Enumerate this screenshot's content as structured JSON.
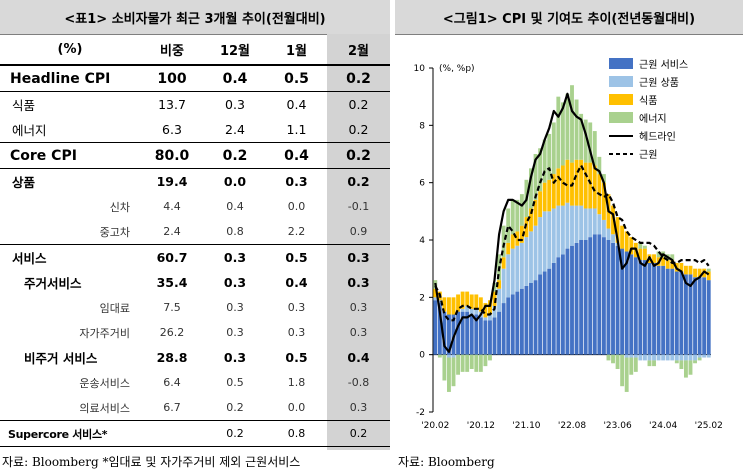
{
  "table": {
    "title": "<표1> 소비자물가 최근 3개월 추이(전월대비)",
    "headers": [
      "(%)",
      "비중",
      "12월",
      "1월",
      "2월"
    ],
    "rows": [
      {
        "label": "Headline CPI",
        "weight": "100",
        "dec": "0.4",
        "jan": "0.5",
        "feb": "0.2"
      },
      {
        "label": "식품",
        "weight": "13.7",
        "dec": "0.3",
        "jan": "0.4",
        "feb": "0.2"
      },
      {
        "label": "에너지",
        "weight": "6.3",
        "dec": "2.4",
        "jan": "1.1",
        "feb": "0.2"
      },
      {
        "label": "Core CPI",
        "weight": "80.0",
        "dec": "0.2",
        "jan": "0.4",
        "feb": "0.2"
      },
      {
        "label": "상품",
        "weight": "19.4",
        "dec": "0.0",
        "jan": "0.3",
        "feb": "0.2"
      },
      {
        "label": "신차",
        "weight": "4.4",
        "dec": "0.4",
        "jan": "0.0",
        "feb": "-0.1"
      },
      {
        "label": "중고차",
        "weight": "2.4",
        "dec": "0.8",
        "jan": "2.2",
        "feb": "0.9"
      },
      {
        "label": "서비스",
        "weight": "60.7",
        "dec": "0.3",
        "jan": "0.5",
        "feb": "0.3"
      },
      {
        "label": "주거서비스",
        "weight": "35.4",
        "dec": "0.3",
        "jan": "0.4",
        "feb": "0.3"
      },
      {
        "label": "임대료",
        "weight": "7.5",
        "dec": "0.3",
        "jan": "0.3",
        "feb": "0.3"
      },
      {
        "label": "자가주거비",
        "weight": "26.2",
        "dec": "0.3",
        "jan": "0.3",
        "feb": "0.3"
      },
      {
        "label": "비주거 서비스",
        "weight": "28.8",
        "dec": "0.3",
        "jan": "0.5",
        "feb": "0.4"
      },
      {
        "label": "운송서비스",
        "weight": "6.4",
        "dec": "0.5",
        "jan": "1.8",
        "feb": "-0.8"
      },
      {
        "label": "의료서비스",
        "weight": "6.7",
        "dec": "0.2",
        "jan": "0.0",
        "feb": "0.3"
      },
      {
        "label": "Supercore 서비스*",
        "weight": "",
        "dec": "0.2",
        "jan": "0.8",
        "feb": "0.2"
      }
    ],
    "source": "자료: Bloomberg *임대료 및 자가주거비 제외 근원서비스"
  },
  "chart": {
    "title": "<그림1> CPI 및 기여도 추이(전년동월대비)",
    "source": "자료: Bloomberg"
  },
  "chart_data": {
    "type": "bar",
    "title": "<그림1> CPI 및 기여도 추이(전년동월대비)",
    "unit_label": "(%, %p)",
    "ylim": [
      -2,
      10
    ],
    "yticks": [
      -2,
      0,
      2,
      4,
      6,
      8,
      10
    ],
    "x_tick_labels": [
      "'20.02",
      "'20.12",
      "'21.10",
      "'22.08",
      "'23.06",
      "'24.04",
      "'25.02"
    ],
    "x_tick_index": [
      0,
      10,
      20,
      30,
      40,
      50,
      60
    ],
    "months": 61,
    "legend_position": "top-right",
    "colors": {
      "core_services": "#4472c4",
      "core_goods": "#9dc3e6",
      "food": "#ffc000",
      "energy": "#a9d18e",
      "headline": "#000000",
      "core": "#000000"
    },
    "series": [
      {
        "name": "근원 서비스",
        "kind": "stacked-bar",
        "values": [
          1.9,
          1.8,
          1.5,
          1.4,
          1.4,
          1.5,
          1.5,
          1.5,
          1.4,
          1.4,
          1.3,
          1.2,
          1.2,
          1.3,
          1.5,
          1.8,
          2.0,
          2.1,
          2.2,
          2.3,
          2.4,
          2.5,
          2.6,
          2.8,
          2.9,
          3.0,
          3.2,
          3.4,
          3.5,
          3.7,
          3.8,
          3.9,
          4.0,
          4.0,
          4.1,
          4.2,
          4.2,
          4.1,
          4.0,
          3.9,
          3.8,
          3.7,
          3.6,
          3.5,
          3.4,
          3.3,
          3.3,
          3.2,
          3.2,
          3.1,
          3.1,
          3.0,
          3.0,
          2.9,
          2.9,
          2.8,
          2.8,
          2.7,
          2.7,
          2.7,
          2.6
        ]
      },
      {
        "name": "근원 상품",
        "kind": "stacked-bar",
        "values": [
          0.1,
          0.1,
          0.0,
          -0.1,
          -0.1,
          0.0,
          0.1,
          0.2,
          0.2,
          0.2,
          0.2,
          0.1,
          0.2,
          0.4,
          0.8,
          1.2,
          1.5,
          1.6,
          1.6,
          1.6,
          1.7,
          1.8,
          1.9,
          2.0,
          2.1,
          2.0,
          1.9,
          1.8,
          1.7,
          1.6,
          1.4,
          1.3,
          1.2,
          1.1,
          1.0,
          0.9,
          0.7,
          0.6,
          0.4,
          0.3,
          0.1,
          0.0,
          -0.1,
          -0.1,
          -0.1,
          -0.2,
          -0.2,
          -0.2,
          -0.2,
          -0.2,
          -0.2,
          -0.2,
          -0.2,
          -0.2,
          -0.2,
          -0.2,
          -0.2,
          -0.2,
          -0.1,
          -0.1,
          -0.1
        ]
      },
      {
        "name": "식품",
        "kind": "stacked-bar",
        "values": [
          0.3,
          0.3,
          0.5,
          0.6,
          0.6,
          0.6,
          0.6,
          0.5,
          0.5,
          0.5,
          0.5,
          0.5,
          0.5,
          0.5,
          0.3,
          0.4,
          0.4,
          0.5,
          0.5,
          0.6,
          0.7,
          0.8,
          0.9,
          0.9,
          1.0,
          1.1,
          1.2,
          1.3,
          1.4,
          1.5,
          1.5,
          1.6,
          1.6,
          1.6,
          1.6,
          1.5,
          1.4,
          1.3,
          1.2,
          1.0,
          0.9,
          0.8,
          0.7,
          0.6,
          0.5,
          0.4,
          0.4,
          0.3,
          0.3,
          0.3,
          0.3,
          0.3,
          0.3,
          0.3,
          0.3,
          0.3,
          0.3,
          0.3,
          0.3,
          0.3,
          0.3
        ]
      },
      {
        "name": "에너지",
        "kind": "stacked-bar",
        "values": [
          0.3,
          -0.1,
          -0.9,
          -1.2,
          -1.0,
          -0.7,
          -0.6,
          -0.6,
          -0.5,
          -0.6,
          -0.6,
          -0.4,
          -0.2,
          0.3,
          0.9,
          1.1,
          1.2,
          1.2,
          1.1,
          1.1,
          1.3,
          1.4,
          1.6,
          1.5,
          1.5,
          1.6,
          1.8,
          2.5,
          2.2,
          2.3,
          2.7,
          2.1,
          1.6,
          1.5,
          1.4,
          1.2,
          0.6,
          0.3,
          -0.2,
          -0.3,
          -0.5,
          -1.1,
          -1.2,
          -0.6,
          -0.5,
          0.2,
          0.1,
          -0.2,
          -0.2,
          0.2,
          0.2,
          0.2,
          0.2,
          -0.1,
          -0.3,
          -0.6,
          -0.5,
          -0.1,
          -0.1,
          0.0,
          0.1
        ]
      },
      {
        "name": "헤드라인",
        "kind": "line",
        "style": "solid",
        "values": [
          2.5,
          1.5,
          0.3,
          0.1,
          0.6,
          1.0,
          1.3,
          1.3,
          1.4,
          1.2,
          1.4,
          1.7,
          1.7,
          2.6,
          4.2,
          5.0,
          5.4,
          5.4,
          5.3,
          5.2,
          5.4,
          6.2,
          6.8,
          7.0,
          7.5,
          7.9,
          8.5,
          8.3,
          8.6,
          9.1,
          8.5,
          8.3,
          8.2,
          7.7,
          7.1,
          6.5,
          6.4,
          6.0,
          5.0,
          4.9,
          4.0,
          3.0,
          3.2,
          3.7,
          3.7,
          3.2,
          3.1,
          3.4,
          3.1,
          3.2,
          3.5,
          3.4,
          3.3,
          3.0,
          2.9,
          2.5,
          2.4,
          2.6,
          2.7,
          2.9,
          2.8
        ]
      },
      {
        "name": "근원",
        "kind": "line",
        "style": "dashed",
        "values": [
          2.4,
          2.1,
          1.4,
          1.2,
          1.2,
          1.6,
          1.7,
          1.7,
          1.6,
          1.6,
          1.6,
          1.4,
          1.4,
          1.6,
          3.0,
          3.8,
          4.5,
          4.3,
          4.0,
          4.0,
          4.6,
          4.9,
          5.5,
          6.0,
          6.4,
          6.5,
          6.0,
          6.2,
          6.0,
          5.9,
          5.9,
          6.3,
          6.6,
          6.3,
          6.0,
          5.7,
          5.6,
          5.5,
          5.6,
          5.3,
          4.8,
          4.7,
          4.3,
          4.1,
          4.0,
          3.9,
          3.9,
          3.9,
          3.8,
          3.6,
          3.4,
          3.3,
          3.2,
          3.2,
          3.3,
          3.3,
          3.3,
          3.3,
          3.2,
          3.3,
          3.1
        ]
      }
    ]
  }
}
